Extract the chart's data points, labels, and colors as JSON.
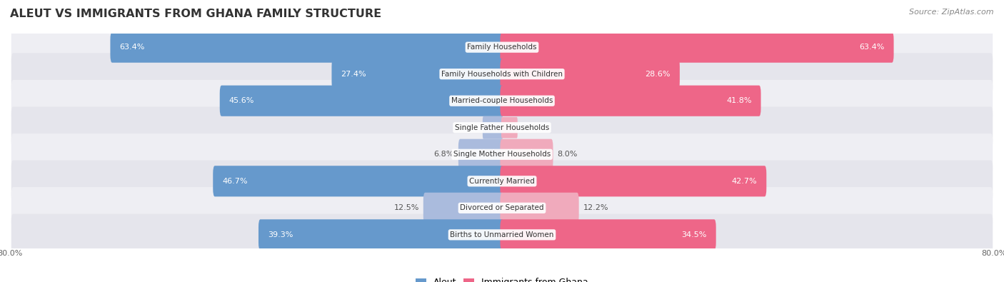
{
  "title": "ALEUT VS IMMIGRANTS FROM GHANA FAMILY STRUCTURE",
  "source": "Source: ZipAtlas.com",
  "categories": [
    "Family Households",
    "Family Households with Children",
    "Married-couple Households",
    "Single Father Households",
    "Single Mother Households",
    "Currently Married",
    "Divorced or Separated",
    "Births to Unmarried Women"
  ],
  "aleut_values": [
    63.4,
    27.4,
    45.6,
    3.0,
    6.8,
    46.7,
    12.5,
    39.3
  ],
  "ghana_values": [
    63.4,
    28.6,
    41.8,
    2.4,
    8.0,
    42.7,
    12.2,
    34.5
  ],
  "aleut_color_strong": "#6699cc",
  "aleut_color_light": "#aabbdd",
  "ghana_color_strong": "#ee6688",
  "ghana_color_light": "#f0aabc",
  "max_value": 80.0,
  "label_color_dark": "#555555",
  "label_color_white": "#ffffff",
  "strong_threshold": 15.0,
  "title_fontsize": 11.5,
  "source_fontsize": 8,
  "bar_label_fontsize": 8,
  "category_fontsize": 7.5,
  "legend_fontsize": 9,
  "axis_label_fontsize": 8,
  "background_color": "#ffffff",
  "row_colors": [
    "#eeeef3",
    "#e5e5ec"
  ]
}
